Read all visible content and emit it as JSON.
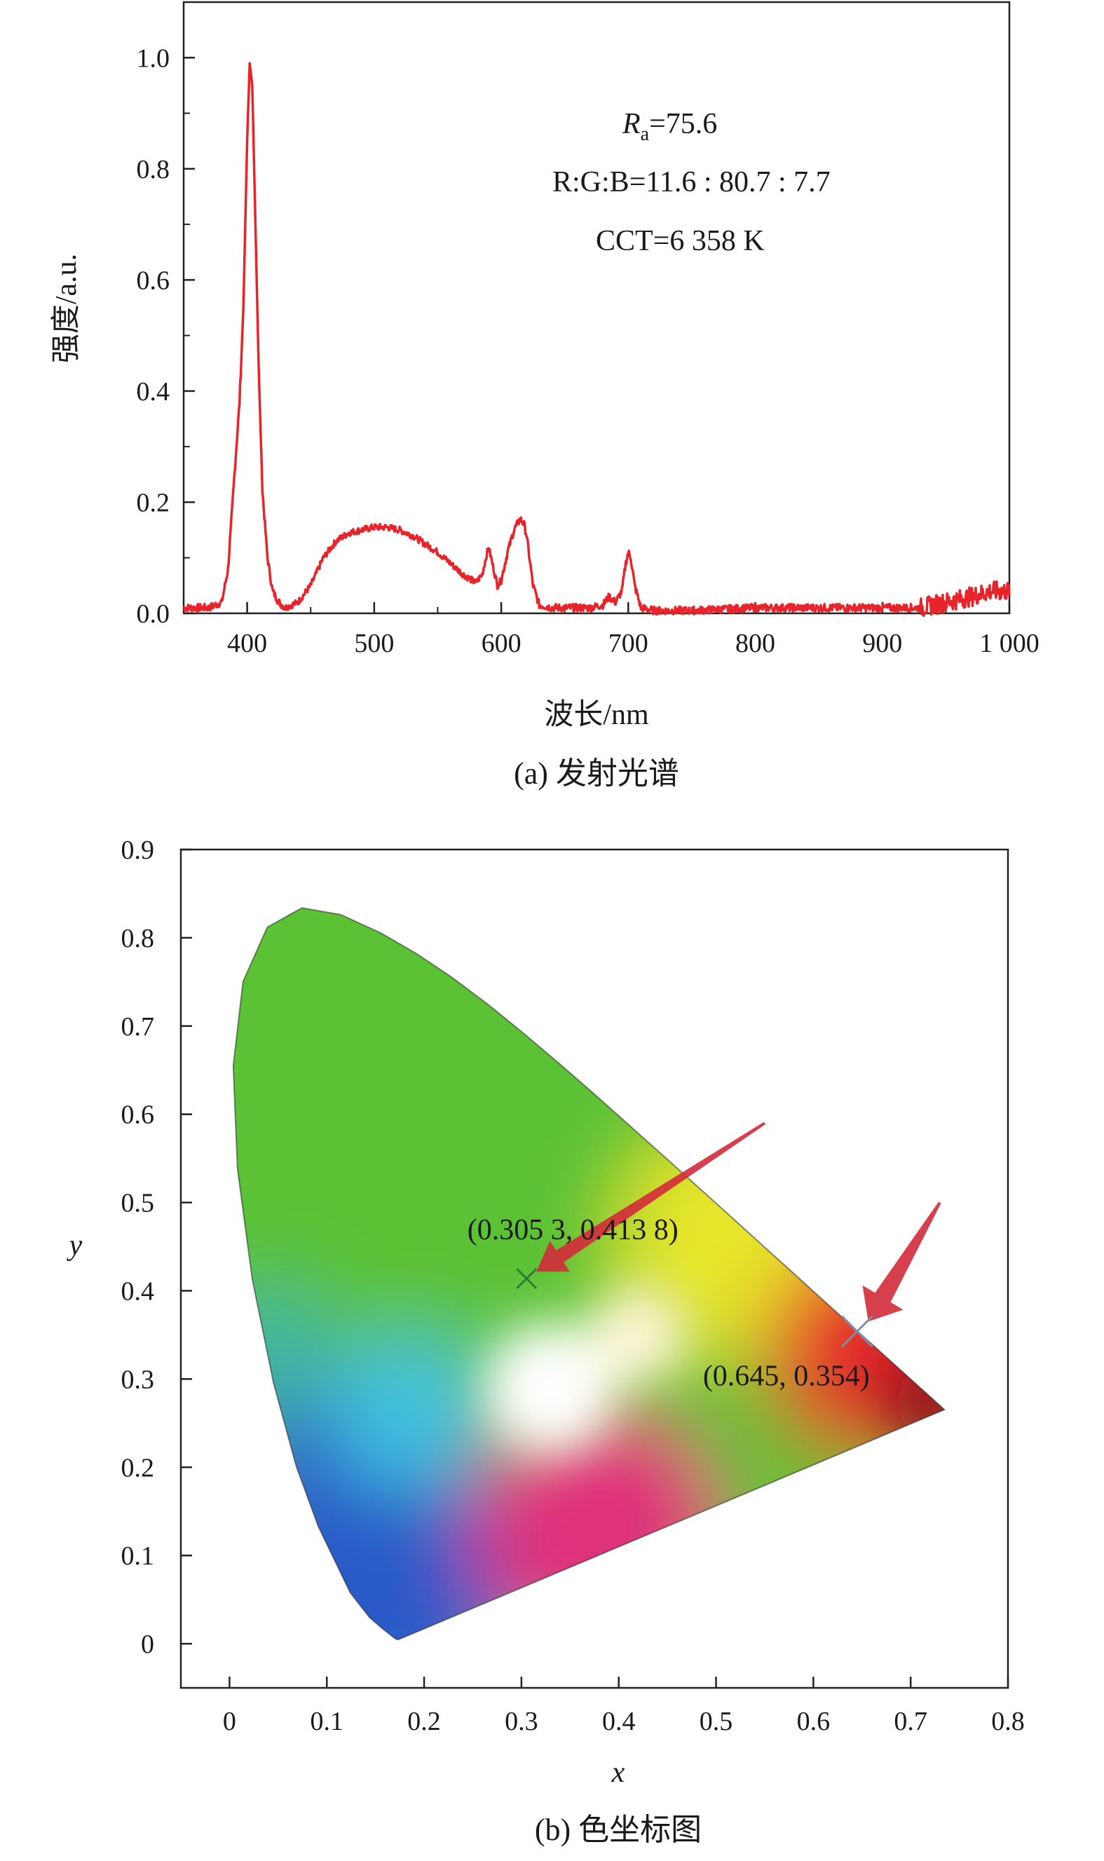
{
  "chart_data": [
    {
      "type": "line",
      "xlabel": "波长/nm",
      "ylabel": "强度/a.u.",
      "caption": "(a) 发射光谱",
      "xlim": [
        350,
        1000
      ],
      "ylim": [
        0,
        1.1
      ],
      "x_ticks": [
        400,
        500,
        600,
        700,
        800,
        900,
        1000
      ],
      "x_tick_labels": [
        "400",
        "500",
        "600",
        "700",
        "800",
        "900",
        "1 000"
      ],
      "y_ticks": [
        0,
        0.2,
        0.4,
        0.6,
        0.8,
        1.0
      ],
      "y_tick_labels": [
        "0.0",
        "0.2",
        "0.4",
        "0.6",
        "0.8",
        "1.0"
      ],
      "color": "#e8232a",
      "series": [
        {
          "x": [
            350,
            370,
            380,
            385,
            390,
            394,
            397,
            400,
            402,
            404,
            406,
            409,
            412,
            416,
            420,
            425,
            430,
            440,
            450,
            460,
            470,
            480,
            490,
            500,
            510,
            520,
            530,
            540,
            550,
            560,
            570,
            580,
            585,
            590,
            593,
            597,
            600,
            605,
            610,
            615,
            618,
            620,
            625,
            630,
            640,
            650,
            660,
            670,
            680,
            685,
            690,
            695,
            698,
            700,
            702,
            705,
            710,
            720,
            750,
            800,
            850,
            900,
            930,
            950,
            970,
            985,
            1000
          ],
          "y": [
            0.01,
            0.01,
            0.02,
            0.08,
            0.25,
            0.38,
            0.55,
            0.85,
            0.99,
            0.95,
            0.75,
            0.45,
            0.22,
            0.1,
            0.04,
            0.02,
            0.01,
            0.02,
            0.05,
            0.1,
            0.13,
            0.145,
            0.15,
            0.155,
            0.155,
            0.15,
            0.14,
            0.125,
            0.11,
            0.09,
            0.07,
            0.055,
            0.07,
            0.12,
            0.09,
            0.05,
            0.06,
            0.11,
            0.15,
            0.17,
            0.16,
            0.14,
            0.05,
            0.015,
            0.01,
            0.01,
            0.01,
            0.01,
            0.015,
            0.03,
            0.02,
            0.04,
            0.09,
            0.11,
            0.1,
            0.05,
            0.01,
            0.005,
            0.005,
            0.01,
            0.01,
            0.01,
            0.01,
            0.02,
            0.03,
            0.04,
            0.04
          ]
        }
      ],
      "annotations": {
        "ra_symbol": "R",
        "ra_sub": "a",
        "ra_value": "=75.6",
        "rgb": "R:G:B=11.6 : 80.7 : 7.7",
        "cct": "CCT=6 358 K"
      }
    },
    {
      "type": "scatter",
      "xlabel": "x",
      "ylabel": "y",
      "caption": "(b) 色坐标图",
      "xlim": [
        -0.05,
        0.8
      ],
      "ylim": [
        -0.05,
        0.9
      ],
      "x_ticks": [
        0,
        0.1,
        0.2,
        0.3,
        0.4,
        0.5,
        0.6,
        0.7,
        0.8
      ],
      "x_tick_labels": [
        "0",
        "0.1",
        "0.2",
        "0.3",
        "0.4",
        "0.5",
        "0.6",
        "0.7",
        "0.8"
      ],
      "y_ticks": [
        0,
        0.1,
        0.2,
        0.3,
        0.4,
        0.5,
        0.6,
        0.7,
        0.8,
        0.9
      ],
      "y_tick_labels": [
        "0",
        "0.1",
        "0.2",
        "0.3",
        "0.4",
        "0.5",
        "0.6",
        "0.7",
        "0.8",
        "0.9"
      ],
      "points": [
        {
          "x": 0.3053,
          "y": 0.4138,
          "label": "(0.305 3, 0.413 8)",
          "marker_color": "#2e7d32"
        },
        {
          "x": 0.645,
          "y": 0.354,
          "label": "(0.645, 0.354)",
          "marker_color": "#7e8fa8"
        }
      ],
      "gamut_colors": {
        "green": "#5cc234",
        "yellow": "#e6e62a",
        "red": "#e62a2a",
        "darkred": "#9a1020",
        "blue": "#2a5ac8",
        "cyan": "#40c0e0",
        "magenta": "#e0307a",
        "white": "#ffffff"
      },
      "arrow_color": "#d42a3a"
    }
  ]
}
